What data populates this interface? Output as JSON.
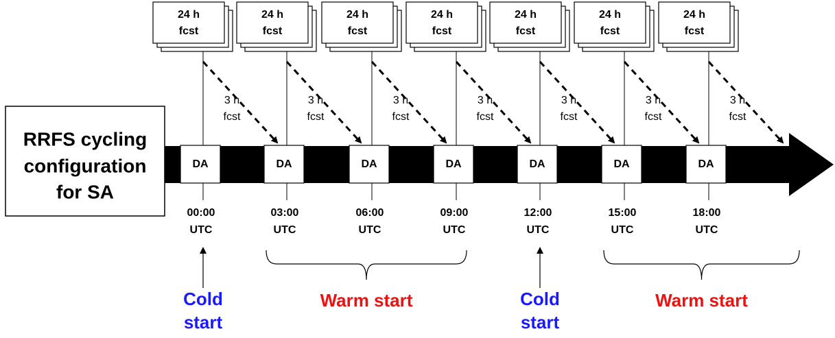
{
  "title": [
    "RRFS cycling",
    "configuration",
    "for SA"
  ],
  "cycles": [
    {
      "forecast": [
        "24 h",
        "fcst"
      ],
      "da": "DA",
      "time": [
        "00:00",
        "UTC"
      ]
    },
    {
      "forecast": [
        "24 h",
        "fcst"
      ],
      "da": "DA",
      "time": [
        "03:00",
        "UTC"
      ]
    },
    {
      "forecast": [
        "24 h",
        "fcst"
      ],
      "da": "DA",
      "time": [
        "06:00",
        "UTC"
      ]
    },
    {
      "forecast": [
        "24 h",
        "fcst"
      ],
      "da": "DA",
      "time": [
        "09:00",
        "UTC"
      ]
    },
    {
      "forecast": [
        "24 h",
        "fcst"
      ],
      "da": "DA",
      "time": [
        "12:00",
        "UTC"
      ]
    },
    {
      "forecast": [
        "24 h",
        "fcst"
      ],
      "da": "DA",
      "time": [
        "15:00",
        "UTC"
      ]
    },
    {
      "forecast": [
        "24 h",
        "fcst"
      ],
      "da": "DA",
      "time": [
        "18:00",
        "UTC"
      ]
    }
  ],
  "short_forecasts": [
    [
      "3 h",
      "fcst"
    ],
    [
      "3 h",
      "fcst"
    ],
    [
      "3 h",
      "fcst"
    ],
    [
      "3 h",
      "fcst"
    ],
    [
      "3 h",
      "fcst"
    ],
    [
      "3 h",
      "fcst"
    ],
    [
      "3 h",
      "fcst"
    ]
  ],
  "cold_starts": [
    [
      "Cold",
      "start"
    ],
    [
      "Cold",
      "start"
    ]
  ],
  "warm_starts": [
    "Warm start",
    "Warm start"
  ]
}
